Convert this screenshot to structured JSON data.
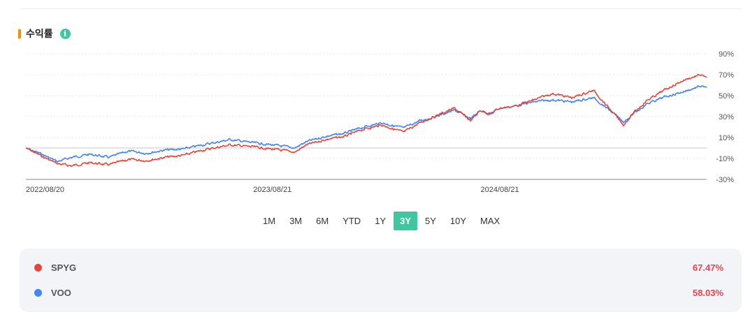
{
  "section": {
    "title": "수익률",
    "accent_color": "#f29100",
    "info_icon": "info-icon",
    "info_icon_glyph": "i",
    "info_icon_color": "#3ec7a1"
  },
  "range_buttons": {
    "active_color": "#3ec7a1",
    "items": [
      "1M",
      "3M",
      "6M",
      "YTD",
      "1Y",
      "3Y",
      "5Y",
      "10Y",
      "MAX"
    ],
    "active": "3Y"
  },
  "legend": [
    {
      "name": "SPYG",
      "color": "#e8453c",
      "value": "67.47%",
      "value_color": "#f0414d"
    },
    {
      "name": "VOO",
      "color": "#4285f4",
      "value": "58.03%",
      "value_color": "#f0414d"
    }
  ],
  "chart_data": {
    "type": "line",
    "title": "",
    "xlabel": "",
    "ylabel": "",
    "x_ticks": [
      "2022/08/20",
      "2023/08/21",
      "2024/08/21"
    ],
    "y_ticks": [
      "90%",
      "70%",
      "50%",
      "30%",
      "10%",
      "-10%",
      "-30%"
    ],
    "ylim": [
      -30,
      90
    ],
    "y_unit": "%",
    "x_range": [
      "2022/08/20",
      "2025/08/20"
    ],
    "grid": "horizontal-dotted",
    "series": [
      {
        "name": "SPYG",
        "color": "#e8453c",
        "points": [
          [
            "2022-08-20",
            0
          ],
          [
            "2022-09-15",
            -8
          ],
          [
            "2022-10-10",
            -15
          ],
          [
            "2022-11-01",
            -17
          ],
          [
            "2022-12-01",
            -14
          ],
          [
            "2023-01-01",
            -16
          ],
          [
            "2023-02-01",
            -11
          ],
          [
            "2023-03-01",
            -12
          ],
          [
            "2023-04-01",
            -9
          ],
          [
            "2023-05-01",
            -7
          ],
          [
            "2023-06-01",
            -2
          ],
          [
            "2023-07-15",
            3
          ],
          [
            "2023-08-21",
            1
          ],
          [
            "2023-09-20",
            -1
          ],
          [
            "2023-10-27",
            -4
          ],
          [
            "2023-11-15",
            3
          ],
          [
            "2023-12-15",
            8
          ],
          [
            "2024-01-15",
            11
          ],
          [
            "2024-02-15",
            18
          ],
          [
            "2024-03-15",
            22
          ],
          [
            "2024-04-19",
            15
          ],
          [
            "2024-05-15",
            24
          ],
          [
            "2024-06-15",
            32
          ],
          [
            "2024-07-10",
            38
          ],
          [
            "2024-08-05",
            26
          ],
          [
            "2024-08-21",
            36
          ],
          [
            "2024-09-06",
            32
          ],
          [
            "2024-09-20",
            38
          ],
          [
            "2024-10-15",
            40
          ],
          [
            "2024-11-15",
            46
          ],
          [
            "2024-12-15",
            52
          ],
          [
            "2025-01-15",
            48
          ],
          [
            "2025-02-19",
            55
          ],
          [
            "2025-03-13",
            40
          ],
          [
            "2025-04-08",
            22
          ],
          [
            "2025-04-25",
            34
          ],
          [
            "2025-05-15",
            45
          ],
          [
            "2025-06-15",
            56
          ],
          [
            "2025-07-15",
            65
          ],
          [
            "2025-08-10",
            70
          ],
          [
            "2025-08-20",
            67.47
          ]
        ]
      },
      {
        "name": "VOO",
        "color": "#4285f4",
        "points": [
          [
            "2022-08-20",
            0
          ],
          [
            "2022-09-15",
            -6
          ],
          [
            "2022-10-10",
            -13
          ],
          [
            "2022-11-01",
            -9
          ],
          [
            "2022-12-01",
            -6
          ],
          [
            "2023-01-01",
            -9
          ],
          [
            "2023-02-01",
            -3
          ],
          [
            "2023-03-01",
            -5
          ],
          [
            "2023-04-01",
            -2
          ],
          [
            "2023-05-01",
            -1
          ],
          [
            "2023-06-01",
            3
          ],
          [
            "2023-07-15",
            8
          ],
          [
            "2023-08-21",
            5
          ],
          [
            "2023-09-20",
            3
          ],
          [
            "2023-10-27",
            0
          ],
          [
            "2023-11-15",
            6
          ],
          [
            "2023-12-15",
            11
          ],
          [
            "2024-01-15",
            14
          ],
          [
            "2024-02-15",
            20
          ],
          [
            "2024-03-15",
            24
          ],
          [
            "2024-04-19",
            19
          ],
          [
            "2024-05-15",
            26
          ],
          [
            "2024-06-15",
            31
          ],
          [
            "2024-07-10",
            36
          ],
          [
            "2024-08-05",
            28
          ],
          [
            "2024-08-21",
            36
          ],
          [
            "2024-09-06",
            33
          ],
          [
            "2024-09-20",
            38
          ],
          [
            "2024-10-15",
            40
          ],
          [
            "2024-11-15",
            44
          ],
          [
            "2024-12-15",
            46
          ],
          [
            "2025-01-15",
            44
          ],
          [
            "2025-02-19",
            48
          ],
          [
            "2025-03-13",
            38
          ],
          [
            "2025-04-08",
            25
          ],
          [
            "2025-04-25",
            33
          ],
          [
            "2025-05-15",
            42
          ],
          [
            "2025-06-15",
            49
          ],
          [
            "2025-07-15",
            54
          ],
          [
            "2025-08-10",
            59
          ],
          [
            "2025-08-20",
            58.03
          ]
        ]
      }
    ]
  }
}
